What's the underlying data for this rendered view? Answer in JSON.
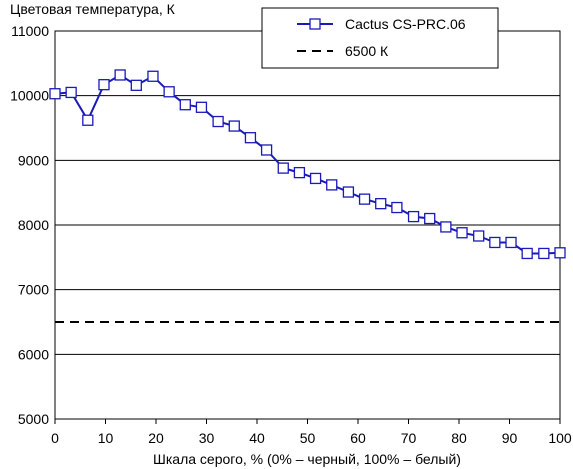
{
  "chart_data": {
    "type": "line",
    "title": "",
    "ylabel": "Цветовая температура, К",
    "xlabel": "Шкала серого, % (0% – черный, 100% – белый)",
    "xlim": [
      0,
      100
    ],
    "ylim": [
      5000,
      11000
    ],
    "xticks": [
      0,
      10,
      20,
      30,
      40,
      50,
      60,
      70,
      80,
      90,
      100
    ],
    "yticks": [
      5000,
      6000,
      7000,
      8000,
      9000,
      10000,
      11000
    ],
    "grid": "horizontal",
    "legend_position": "top-right",
    "series": [
      {
        "name": "Cactus CS-PRC.06",
        "color": "#1a1ab8",
        "marker": "open-square",
        "x": [
          0,
          3.2,
          6.5,
          9.7,
          12.9,
          16.1,
          19.4,
          22.6,
          25.8,
          29.0,
          32.3,
          35.5,
          38.7,
          41.9,
          45.2,
          48.4,
          51.6,
          54.8,
          58.1,
          61.3,
          64.5,
          67.7,
          71.0,
          74.2,
          77.4,
          80.6,
          83.9,
          87.1,
          90.3,
          93.5,
          96.8,
          100
        ],
        "y": [
          10030,
          10050,
          9620,
          10170,
          10320,
          10160,
          10300,
          10060,
          9860,
          9820,
          9600,
          9530,
          9350,
          9160,
          8880,
          8810,
          8720,
          8620,
          8510,
          8400,
          8330,
          8270,
          8130,
          8100,
          7970,
          7880,
          7830,
          7730,
          7730,
          7560,
          7560,
          7570
        ]
      },
      {
        "name": "6500 К",
        "color": "#000000",
        "style": "dashed",
        "x": [
          0,
          100
        ],
        "y": [
          6500,
          6500
        ]
      }
    ]
  }
}
